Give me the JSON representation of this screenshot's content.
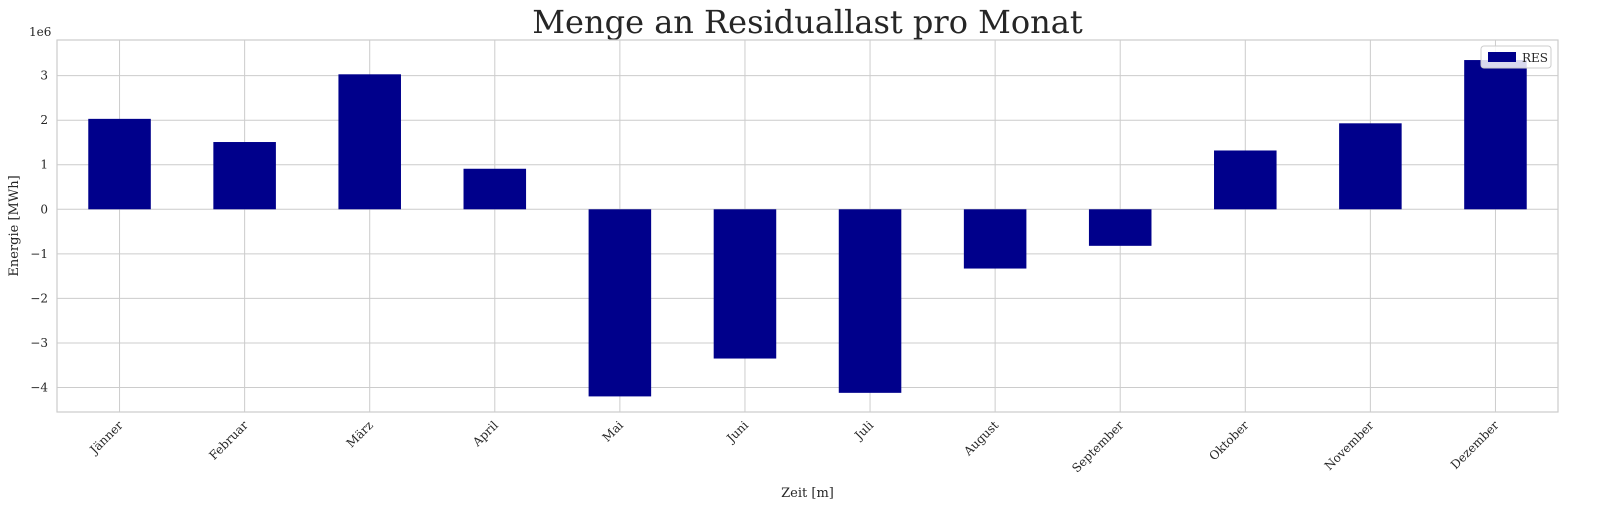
{
  "chart_data": {
    "type": "bar",
    "title": "Menge an Residuallast pro Monat",
    "xlabel": "Zeit [m]",
    "ylabel": "Energie [MWh]",
    "offset_label": "1e6",
    "categories": [
      "Jänner",
      "Februar",
      "März",
      "April",
      "Mai",
      "Juni",
      "Juli",
      "August",
      "September",
      "Oktober",
      "November",
      "Dezember"
    ],
    "series": [
      {
        "name": "RES",
        "color": "#00008b",
        "values": [
          2030000,
          1510000,
          3030000,
          910000,
          -4200000,
          -3350000,
          -4120000,
          -1330000,
          -820000,
          1320000,
          1930000,
          3350000
        ]
      }
    ],
    "ylim": [
      -4.55,
      3.8
    ],
    "yticks": [
      -4,
      -3,
      -2,
      -1,
      0,
      1,
      2,
      3
    ],
    "ytick_labels": [
      "−4",
      "−3",
      "−2",
      "−1",
      "0",
      "1",
      "2",
      "3"
    ],
    "grid": true,
    "legend_position": "top-right"
  }
}
